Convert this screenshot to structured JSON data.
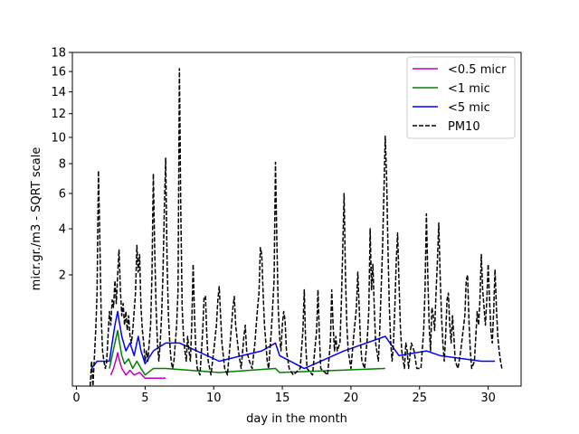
{
  "chart_data": {
    "type": "line",
    "xlabel": "day in the month",
    "ylabel": "micr.gr./m3 - SQRT scale",
    "y_scale": "sqrt",
    "xlim": [
      -0.3,
      32.4
    ],
    "ylim": [
      0,
      18
    ],
    "x_ticks": [
      0,
      5,
      10,
      15,
      20,
      25,
      30
    ],
    "y_ticks": [
      2,
      4,
      6,
      8,
      10,
      12,
      14,
      16,
      18
    ],
    "grid": false,
    "legend_position": "top-right",
    "series": [
      {
        "name": "<0.5 micr",
        "color": "#bf00bf",
        "style": "solid",
        "points": [
          [
            2.5,
            0.02
          ],
          [
            2.7,
            0.05
          ],
          [
            2.9,
            0.12
          ],
          [
            3.0,
            0.18
          ],
          [
            3.1,
            0.12
          ],
          [
            3.3,
            0.05
          ],
          [
            3.6,
            0.02
          ],
          [
            3.9,
            0.04
          ],
          [
            4.2,
            0.02
          ],
          [
            4.6,
            0.03
          ],
          [
            5.0,
            0.01
          ],
          [
            5.6,
            0.01
          ],
          [
            6.5,
            0.01
          ]
        ]
      },
      {
        "name": "<1 mic",
        "color": "#008000",
        "style": "solid",
        "points": [
          [
            2.4,
            0.05
          ],
          [
            2.6,
            0.15
          ],
          [
            2.8,
            0.3
          ],
          [
            3.0,
            0.5
          ],
          [
            3.1,
            0.35
          ],
          [
            3.3,
            0.15
          ],
          [
            3.5,
            0.08
          ],
          [
            3.8,
            0.12
          ],
          [
            4.1,
            0.05
          ],
          [
            4.4,
            0.1
          ],
          [
            4.7,
            0.05
          ],
          [
            5.0,
            0.02
          ],
          [
            5.6,
            0.05
          ],
          [
            6.5,
            0.05
          ],
          [
            10.4,
            0.03
          ],
          [
            14.5,
            0.05
          ],
          [
            14.8,
            0.03
          ],
          [
            22.5,
            0.05
          ]
        ]
      },
      {
        "name": "<5 mic",
        "color": "#0000ff",
        "style": "solid",
        "points": [
          [
            1.1,
            0.05
          ],
          [
            1.5,
            0.1
          ],
          [
            2.4,
            0.1
          ],
          [
            2.6,
            0.3
          ],
          [
            2.8,
            0.6
          ],
          [
            3.0,
            0.9
          ],
          [
            3.1,
            0.7
          ],
          [
            3.3,
            0.4
          ],
          [
            3.6,
            0.2
          ],
          [
            3.9,
            0.3
          ],
          [
            4.2,
            0.15
          ],
          [
            4.5,
            0.4
          ],
          [
            4.7,
            0.2
          ],
          [
            5.0,
            0.08
          ],
          [
            5.6,
            0.2
          ],
          [
            6.5,
            0.3
          ],
          [
            7.5,
            0.3
          ],
          [
            10.4,
            0.1
          ],
          [
            13.5,
            0.2
          ],
          [
            14.5,
            0.3
          ],
          [
            14.8,
            0.15
          ],
          [
            16.6,
            0.05
          ],
          [
            19.5,
            0.2
          ],
          [
            22.5,
            0.4
          ],
          [
            23.5,
            0.15
          ],
          [
            25.5,
            0.2
          ],
          [
            26.5,
            0.15
          ],
          [
            29.5,
            0.1
          ],
          [
            30.5,
            0.1
          ]
        ]
      },
      {
        "name": "PM10",
        "color": "#000000",
        "style": "dashed",
        "points": [
          [
            1.0,
            0.0
          ],
          [
            1.1,
            0.1
          ],
          [
            1.2,
            0.0
          ],
          [
            1.4,
            0.5
          ],
          [
            1.5,
            1.4
          ],
          [
            1.6,
            7.5
          ],
          [
            1.7,
            3.5
          ],
          [
            1.8,
            0.8
          ],
          [
            1.9,
            0.2
          ],
          [
            2.0,
            0.1
          ],
          [
            2.1,
            0.05
          ],
          [
            2.2,
            0.1
          ],
          [
            2.3,
            0.4
          ],
          [
            2.4,
            0.9
          ],
          [
            2.5,
            0.6
          ],
          [
            2.6,
            1.2
          ],
          [
            2.7,
            1.0
          ],
          [
            2.8,
            1.8
          ],
          [
            2.9,
            1.1
          ],
          [
            3.0,
            2.0
          ],
          [
            3.1,
            3.0
          ],
          [
            3.2,
            1.5
          ],
          [
            3.3,
            0.8
          ],
          [
            3.4,
            1.1
          ],
          [
            3.5,
            0.6
          ],
          [
            3.6,
            0.9
          ],
          [
            3.7,
            0.5
          ],
          [
            3.8,
            0.8
          ],
          [
            3.9,
            0.4
          ],
          [
            4.0,
            0.3
          ],
          [
            4.1,
            0.5
          ],
          [
            4.2,
            0.9
          ],
          [
            4.3,
            1.4
          ],
          [
            4.4,
            3.2
          ],
          [
            4.5,
            2.1
          ],
          [
            4.6,
            2.8
          ],
          [
            4.7,
            1.0
          ],
          [
            4.8,
            0.5
          ],
          [
            4.9,
            0.3
          ],
          [
            5.0,
            0.1
          ],
          [
            5.1,
            0.2
          ],
          [
            5.2,
            0.1
          ],
          [
            5.3,
            0.3
          ],
          [
            5.4,
            0.6
          ],
          [
            5.5,
            2.0
          ],
          [
            5.6,
            7.3
          ],
          [
            5.7,
            3.0
          ],
          [
            5.8,
            1.0
          ],
          [
            5.9,
            0.3
          ],
          [
            6.0,
            0.1
          ],
          [
            6.1,
            0.3
          ],
          [
            6.2,
            0.8
          ],
          [
            6.3,
            2.0
          ],
          [
            6.4,
            5.0
          ],
          [
            6.5,
            8.4
          ],
          [
            6.6,
            2.5
          ],
          [
            6.7,
            0.8
          ],
          [
            6.8,
            0.3
          ],
          [
            6.9,
            0.1
          ],
          [
            7.0,
            0.05
          ],
          [
            7.1,
            0.1
          ],
          [
            7.2,
            0.3
          ],
          [
            7.3,
            0.6
          ],
          [
            7.4,
            1.5
          ],
          [
            7.5,
            16.3
          ],
          [
            7.6,
            5.0
          ],
          [
            7.7,
            1.0
          ],
          [
            7.8,
            0.4
          ],
          [
            7.9,
            0.2
          ],
          [
            8.0,
            0.1
          ],
          [
            8.1,
            0.4
          ],
          [
            8.2,
            0.2
          ],
          [
            8.3,
            0.1
          ],
          [
            8.4,
            0.6
          ],
          [
            8.5,
            2.4
          ],
          [
            8.6,
            0.8
          ],
          [
            8.7,
            0.2
          ],
          [
            8.8,
            0.05
          ],
          [
            9.0,
            0.02
          ],
          [
            9.2,
            0.5
          ],
          [
            9.3,
            1.3
          ],
          [
            9.4,
            1.3
          ],
          [
            9.5,
            0.4
          ],
          [
            9.6,
            0.1
          ],
          [
            9.8,
            0.02
          ],
          [
            10.0,
            0.2
          ],
          [
            10.2,
            0.6
          ],
          [
            10.3,
            1.2
          ],
          [
            10.4,
            1.6
          ],
          [
            10.5,
            0.8
          ],
          [
            10.6,
            0.3
          ],
          [
            10.8,
            0.05
          ],
          [
            11.0,
            0.02
          ],
          [
            11.2,
            0.3
          ],
          [
            11.4,
            1.0
          ],
          [
            11.5,
            1.3
          ],
          [
            11.6,
            0.6
          ],
          [
            11.8,
            0.2
          ],
          [
            12.0,
            0.05
          ],
          [
            12.2,
            0.4
          ],
          [
            12.3,
            0.6
          ],
          [
            12.4,
            0.2
          ],
          [
            12.6,
            0.1
          ],
          [
            12.8,
            0.05
          ],
          [
            13.0,
            0.3
          ],
          [
            13.1,
            0.6
          ],
          [
            13.2,
            1.0
          ],
          [
            13.3,
            1.4
          ],
          [
            13.4,
            3.1
          ],
          [
            13.5,
            2.8
          ],
          [
            13.6,
            1.4
          ],
          [
            13.7,
            0.6
          ],
          [
            13.8,
            0.3
          ],
          [
            13.9,
            0.1
          ],
          [
            14.0,
            0.05
          ],
          [
            14.2,
            0.5
          ],
          [
            14.4,
            1.8
          ],
          [
            14.5,
            8.1
          ],
          [
            14.6,
            3.5
          ],
          [
            14.7,
            1.0
          ],
          [
            14.8,
            0.4
          ],
          [
            14.9,
            0.2
          ],
          [
            15.0,
            0.6
          ],
          [
            15.1,
            0.9
          ],
          [
            15.2,
            0.7
          ],
          [
            15.3,
            0.2
          ],
          [
            15.5,
            0.05
          ],
          [
            15.8,
            0.02
          ],
          [
            16.3,
            0.05
          ],
          [
            16.5,
            0.5
          ],
          [
            16.6,
            1.5
          ],
          [
            16.7,
            0.3
          ],
          [
            16.8,
            0.05
          ],
          [
            17.2,
            0.02
          ],
          [
            17.5,
            0.5
          ],
          [
            17.6,
            1.5
          ],
          [
            17.7,
            0.4
          ],
          [
            17.8,
            0.05
          ],
          [
            18.3,
            0.02
          ],
          [
            18.5,
            0.3
          ],
          [
            18.6,
            1.5
          ],
          [
            18.7,
            0.6
          ],
          [
            18.8,
            0.2
          ],
          [
            18.9,
            0.4
          ],
          [
            19.0,
            0.2
          ],
          [
            19.2,
            0.3
          ],
          [
            19.3,
            1.1
          ],
          [
            19.4,
            3.0
          ],
          [
            19.5,
            6.0
          ],
          [
            19.6,
            2.0
          ],
          [
            19.7,
            0.6
          ],
          [
            19.8,
            0.2
          ],
          [
            20.0,
            0.05
          ],
          [
            20.2,
            0.4
          ],
          [
            20.4,
            1.0
          ],
          [
            20.5,
            2.1
          ],
          [
            20.6,
            1.0
          ],
          [
            20.7,
            0.3
          ],
          [
            20.8,
            0.1
          ],
          [
            21.0,
            0.05
          ],
          [
            21.2,
            0.4
          ],
          [
            21.3,
            0.9
          ],
          [
            21.4,
            4.0
          ],
          [
            21.5,
            1.5
          ],
          [
            21.6,
            2.4
          ],
          [
            21.7,
            1.0
          ],
          [
            21.8,
            0.3
          ],
          [
            22.0,
            0.1
          ],
          [
            22.1,
            0.5
          ],
          [
            22.2,
            1.5
          ],
          [
            22.3,
            3.0
          ],
          [
            22.4,
            6.0
          ],
          [
            22.5,
            10.1
          ],
          [
            22.6,
            7.0
          ],
          [
            22.7,
            3.0
          ],
          [
            22.8,
            1.0
          ],
          [
            22.9,
            0.3
          ],
          [
            23.0,
            0.1
          ],
          [
            23.1,
            0.3
          ],
          [
            23.2,
            1.0
          ],
          [
            23.3,
            2.5
          ],
          [
            23.4,
            3.8
          ],
          [
            23.5,
            1.8
          ],
          [
            23.6,
            0.6
          ],
          [
            23.7,
            0.2
          ],
          [
            23.9,
            0.05
          ],
          [
            24.0,
            0.3
          ],
          [
            24.1,
            0.2
          ],
          [
            24.2,
            0.05
          ],
          [
            24.4,
            0.3
          ],
          [
            24.6,
            0.2
          ],
          [
            24.8,
            0.05
          ],
          [
            25.1,
            0.05
          ],
          [
            25.3,
            0.5
          ],
          [
            25.4,
            1.5
          ],
          [
            25.5,
            4.8
          ],
          [
            25.6,
            2.0
          ],
          [
            25.7,
            0.6
          ],
          [
            25.8,
            0.2
          ],
          [
            25.9,
            1.0
          ],
          [
            26.0,
            0.8
          ],
          [
            26.1,
            0.5
          ],
          [
            26.2,
            1.4
          ],
          [
            26.3,
            2.5
          ],
          [
            26.4,
            4.3
          ],
          [
            26.5,
            2.0
          ],
          [
            26.6,
            0.8
          ],
          [
            26.7,
            0.3
          ],
          [
            26.8,
            0.1
          ],
          [
            26.9,
            0.4
          ],
          [
            27.0,
            1.2
          ],
          [
            27.1,
            1.4
          ],
          [
            27.2,
            0.6
          ],
          [
            27.3,
            0.3
          ],
          [
            27.4,
            0.8
          ],
          [
            27.5,
            0.4
          ],
          [
            27.6,
            0.1
          ],
          [
            27.8,
            0.05
          ],
          [
            28.0,
            0.2
          ],
          [
            28.3,
            0.8
          ],
          [
            28.4,
            1.8
          ],
          [
            28.5,
            2.0
          ],
          [
            28.6,
            0.7
          ],
          [
            28.7,
            0.2
          ],
          [
            28.8,
            0.05
          ],
          [
            29.0,
            0.1
          ],
          [
            29.1,
            0.4
          ],
          [
            29.2,
            0.9
          ],
          [
            29.3,
            0.6
          ],
          [
            29.4,
            1.2
          ],
          [
            29.5,
            2.8
          ],
          [
            29.6,
            1.5
          ],
          [
            29.7,
            1.0
          ],
          [
            29.8,
            0.6
          ],
          [
            29.9,
            1.2
          ],
          [
            30.0,
            2.4
          ],
          [
            30.1,
            1.2
          ],
          [
            30.2,
            0.5
          ],
          [
            30.3,
            0.3
          ],
          [
            30.4,
            0.9
          ],
          [
            30.5,
            2.2
          ],
          [
            30.6,
            1.0
          ],
          [
            30.7,
            0.4
          ],
          [
            30.8,
            0.2
          ],
          [
            30.9,
            0.1
          ],
          [
            31.0,
            0.05
          ]
        ]
      }
    ]
  }
}
